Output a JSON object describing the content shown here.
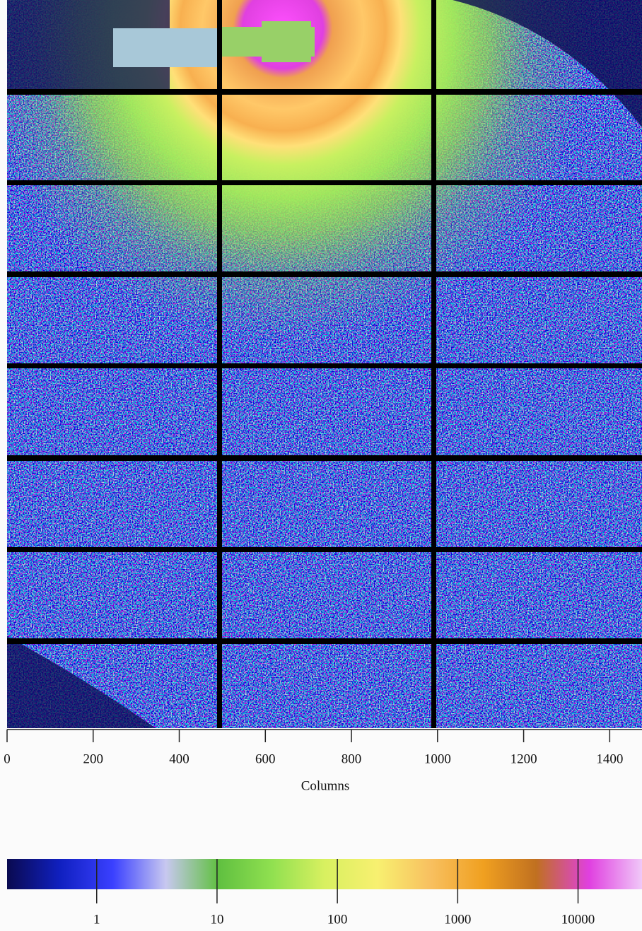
{
  "chart_data": {
    "type": "heatmap",
    "xlabel": "Columns",
    "xlim": [
      0,
      1475
    ],
    "xticks": [
      0,
      200,
      400,
      600,
      800,
      1000,
      1200,
      1400
    ],
    "colorbar": {
      "scale": "log",
      "lim": [
        0.18,
        34000
      ],
      "ticks": [
        1,
        10,
        100,
        1000,
        10000
      ],
      "colors": [
        "#0a0a50",
        "#1020c0",
        "#3a40ff",
        "#c8c8f0",
        "#60c040",
        "#90e050",
        "#d8f060",
        "#f8f070",
        "#f8c060",
        "#f0a020",
        "#c07020",
        "#e040e0",
        "#f0c8f8"
      ]
    }
  }
}
